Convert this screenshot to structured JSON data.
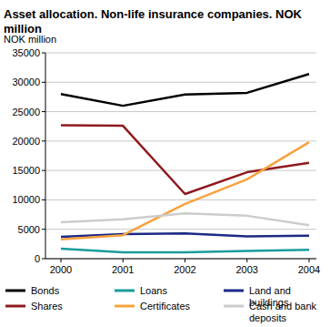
{
  "chart_data": {
    "type": "line",
    "title": "Asset allocation. Non-life insurance companies. NOK million",
    "y_label": "NOK million",
    "categories": [
      "2000",
      "2001",
      "2002",
      "2003",
      "2004"
    ],
    "series": [
      {
        "name": "Bonds",
        "color": "#000000",
        "values": [
          28000,
          26000,
          27900,
          28200,
          31400
        ]
      },
      {
        "name": "Loans",
        "color": "#1a9c9c",
        "values": [
          1700,
          1100,
          1100,
          1300,
          1500
        ]
      },
      {
        "name": "Land and buildings",
        "color": "#1c2a86",
        "values": [
          3700,
          4200,
          4300,
          3800,
          3900
        ]
      },
      {
        "name": "Shares",
        "color": "#8e1a1e",
        "values": [
          22700,
          22600,
          11000,
          14700,
          16300
        ]
      },
      {
        "name": "Certificates",
        "color": "#f7a23e",
        "values": [
          3300,
          4000,
          9300,
          13500,
          19800
        ]
      },
      {
        "name": "Cash and bank deposits",
        "color": "#cccccc",
        "values": [
          6200,
          6700,
          7700,
          7300,
          5700
        ]
      }
    ],
    "ylim": [
      0,
      35000
    ],
    "yticks": [
      0,
      5000,
      10000,
      15000,
      20000,
      25000,
      30000,
      35000
    ],
    "grid": true,
    "legend": "bottom"
  }
}
